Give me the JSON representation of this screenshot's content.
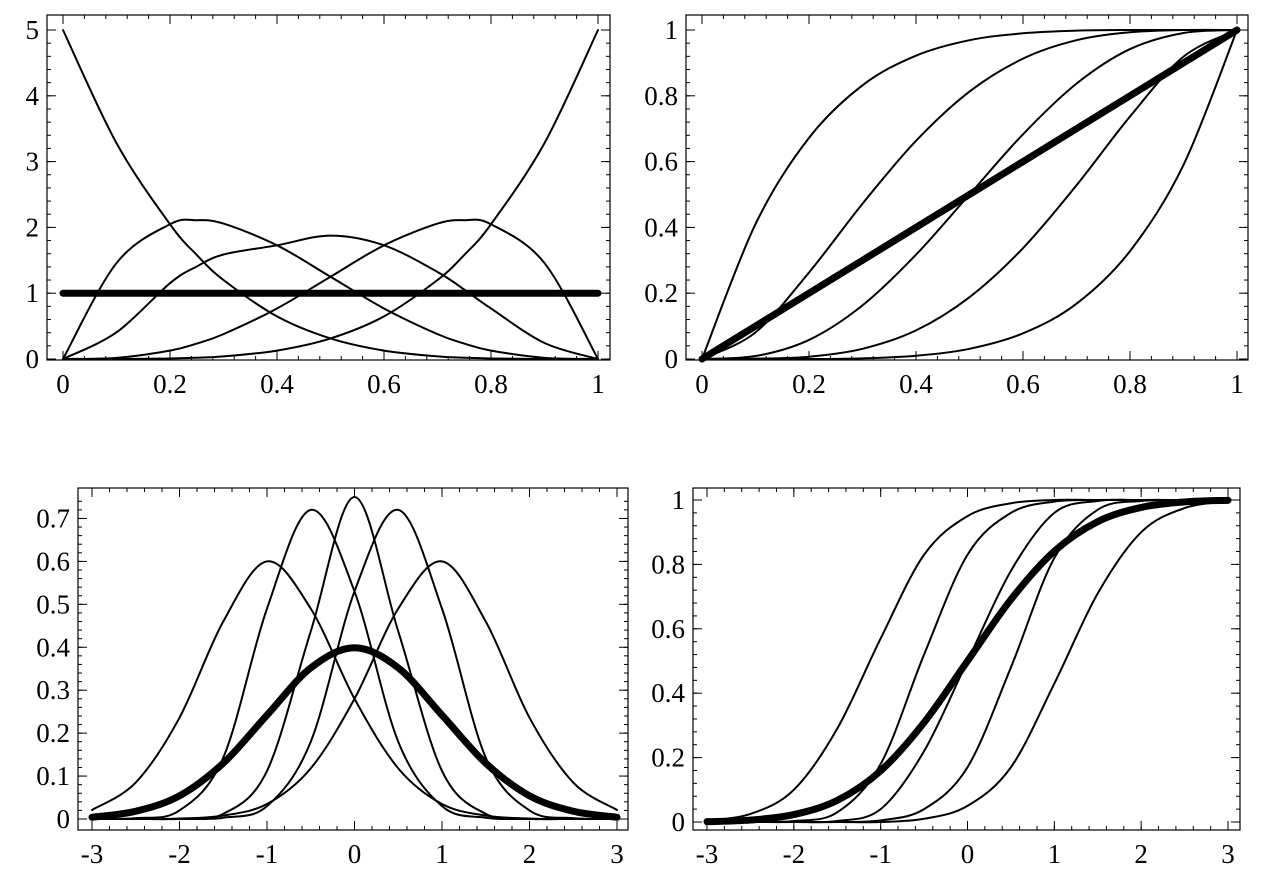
{
  "chart_data": [
    {
      "type": "line",
      "title": "",
      "xlabel": "",
      "ylabel": "",
      "xlim": [
        0,
        1
      ],
      "ylim": [
        0,
        5
      ],
      "x_ticks": [
        "0",
        "0.2",
        "0.4",
        "0.6",
        "0.8",
        "1"
      ],
      "y_ticks": [
        "0",
        "1",
        "2",
        "3",
        "4",
        "5"
      ],
      "x_tick_values": [
        0,
        0.2,
        0.4,
        0.6,
        0.8,
        1
      ],
      "y_tick_values": [
        0,
        1,
        2,
        3,
        4,
        5
      ],
      "grid": false,
      "x": [
        0,
        0.1,
        0.2,
        0.25,
        0.3,
        0.4,
        0.5,
        0.6,
        0.7,
        0.75,
        0.8,
        0.9,
        1
      ],
      "series": [
        {
          "values": [
            5,
            3.281,
            2.048,
            1.582,
            1.2005,
            0.648,
            0.3125,
            0.128,
            0.0405,
            0.0195,
            0.008,
            0.0005,
            0
          ],
          "bold": false
        },
        {
          "values": [
            0,
            1.458,
            2.048,
            2.109,
            2.058,
            1.728,
            1.25,
            0.768,
            0.378,
            0.234,
            0.128,
            0.018,
            0
          ],
          "bold": false
        },
        {
          "values": [
            0,
            0.405,
            1.152,
            1.406,
            1.588,
            1.728,
            1.875,
            1.728,
            1.323,
            1.055,
            0.768,
            0.243,
            0
          ],
          "bold": false
        },
        {
          "values": [
            0,
            0.018,
            0.128,
            0.234,
            0.378,
            0.768,
            1.25,
            1.728,
            2.058,
            2.109,
            2.048,
            1.458,
            0
          ],
          "bold": false
        },
        {
          "values": [
            0,
            0.0005,
            0.008,
            0.0195,
            0.0405,
            0.128,
            0.3125,
            0.648,
            1.2005,
            1.582,
            2.048,
            3.281,
            5
          ],
          "bold": false
        },
        {
          "values": [
            1,
            1,
            1,
            1,
            1,
            1,
            1,
            1,
            1,
            1,
            1,
            1,
            1
          ],
          "bold": true
        }
      ]
    },
    {
      "type": "line",
      "title": "",
      "xlabel": "",
      "ylabel": "",
      "xlim": [
        0,
        1
      ],
      "ylim": [
        0,
        1
      ],
      "x_ticks": [
        "0",
        "0.2",
        "0.4",
        "0.6",
        "0.8",
        "1"
      ],
      "y_ticks": [
        "0",
        "0.2",
        "0.4",
        "0.6",
        "0.8",
        "1"
      ],
      "x_tick_values": [
        0,
        0.2,
        0.4,
        0.6,
        0.8,
        1
      ],
      "y_tick_values": [
        0,
        0.2,
        0.4,
        0.6,
        0.8,
        1
      ],
      "grid": false,
      "x": [
        0,
        0.1,
        0.2,
        0.3,
        0.4,
        0.5,
        0.6,
        0.7,
        0.8,
        0.9,
        1
      ],
      "series": [
        {
          "values": [
            0,
            0.41,
            0.672,
            0.832,
            0.922,
            0.969,
            0.99,
            0.998,
            1,
            1,
            1
          ],
          "bold": false
        },
        {
          "values": [
            0,
            0.081,
            0.263,
            0.472,
            0.663,
            0.813,
            0.913,
            0.969,
            0.993,
            1,
            1
          ],
          "bold": false
        },
        {
          "values": [
            0,
            0.009,
            0.058,
            0.163,
            0.317,
            0.5,
            0.683,
            0.837,
            0.942,
            0.991,
            1
          ],
          "bold": false
        },
        {
          "values": [
            0,
            0.001,
            0.007,
            0.031,
            0.087,
            0.188,
            0.337,
            0.528,
            0.737,
            0.919,
            1
          ],
          "bold": false
        },
        {
          "values": [
            0,
            0,
            0,
            0.002,
            0.01,
            0.031,
            0.078,
            0.168,
            0.328,
            0.59,
            1
          ],
          "bold": false
        },
        {
          "values": [
            0,
            0.1,
            0.2,
            0.3,
            0.4,
            0.5,
            0.6,
            0.7,
            0.8,
            0.9,
            1
          ],
          "bold": true
        }
      ]
    },
    {
      "type": "line",
      "title": "",
      "xlabel": "",
      "ylabel": "",
      "xlim": [
        -3,
        3
      ],
      "ylim": [
        0,
        0.75
      ],
      "x_ticks": [
        "-3",
        "-2",
        "-1",
        "0",
        "1",
        "2",
        "3"
      ],
      "y_ticks": [
        "0",
        "0.1",
        "0.2",
        "0.3",
        "0.4",
        "0.5",
        "0.6",
        "0.7"
      ],
      "x_tick_values": [
        -3,
        -2,
        -1,
        0,
        1,
        2,
        3
      ],
      "y_tick_values": [
        0,
        0.1,
        0.2,
        0.3,
        0.4,
        0.5,
        0.6,
        0.7
      ],
      "grid": false,
      "x": [
        -3,
        -2.5,
        -2,
        -1.5,
        -1,
        -0.5,
        0,
        0.5,
        1,
        1.5,
        2,
        2.5,
        3
      ],
      "series": [
        {
          "values": [
            0.021,
            0.085,
            0.236,
            0.46,
            0.6,
            0.49,
            0.28,
            0.118,
            0.035,
            0.008,
            0.001,
            0,
            0
          ],
          "bold": false
        },
        {
          "values": [
            0,
            0.002,
            0.02,
            0.143,
            0.49,
            0.72,
            0.53,
            0.18,
            0.03,
            0.003,
            0,
            0,
            0
          ],
          "bold": false
        },
        {
          "values": [
            0,
            0,
            0.001,
            0.012,
            0.112,
            0.437,
            0.75,
            0.437,
            0.112,
            0.012,
            0.001,
            0,
            0
          ],
          "bold": false
        },
        {
          "values": [
            0,
            0,
            0,
            0.003,
            0.03,
            0.18,
            0.53,
            0.72,
            0.49,
            0.143,
            0.02,
            0.002,
            0
          ],
          "bold": false
        },
        {
          "values": [
            0,
            0,
            0.001,
            0.008,
            0.035,
            0.118,
            0.28,
            0.49,
            0.6,
            0.46,
            0.236,
            0.085,
            0.021
          ],
          "bold": false
        },
        {
          "values": [
            0.004,
            0.018,
            0.054,
            0.13,
            0.242,
            0.352,
            0.399,
            0.352,
            0.242,
            0.13,
            0.054,
            0.018,
            0.004
          ],
          "bold": true
        }
      ]
    },
    {
      "type": "line",
      "title": "",
      "xlabel": "",
      "ylabel": "",
      "xlim": [
        -3,
        3
      ],
      "ylim": [
        0,
        1
      ],
      "x_ticks": [
        "-3",
        "-2",
        "-1",
        "0",
        "1",
        "2",
        "3"
      ],
      "y_ticks": [
        "0",
        "0.2",
        "0.4",
        "0.6",
        "0.8",
        "1"
      ],
      "x_tick_values": [
        -3,
        -2,
        -1,
        0,
        1,
        2,
        3
      ],
      "y_tick_values": [
        0,
        0.2,
        0.4,
        0.6,
        0.8,
        1
      ],
      "grid": false,
      "x": [
        -3,
        -2.5,
        -2,
        -1.5,
        -1,
        -0.5,
        0,
        0.5,
        1,
        1.5,
        2,
        2.5,
        3
      ],
      "series": [
        {
          "values": [
            0.004,
            0.025,
            0.1,
            0.29,
            0.57,
            0.83,
            0.95,
            0.99,
            1,
            1,
            1,
            1,
            1
          ],
          "bold": false
        },
        {
          "values": [
            0,
            0,
            0.003,
            0.03,
            0.18,
            0.52,
            0.83,
            0.96,
            0.995,
            1,
            1,
            1,
            1
          ],
          "bold": false
        },
        {
          "values": [
            0,
            0,
            0,
            0.003,
            0.04,
            0.22,
            0.5,
            0.78,
            0.96,
            0.997,
            1,
            1,
            1
          ],
          "bold": false
        },
        {
          "values": [
            0,
            0,
            0,
            0,
            0.005,
            0.04,
            0.17,
            0.48,
            0.82,
            0.97,
            0.997,
            1,
            1
          ],
          "bold": false
        },
        {
          "values": [
            0,
            0,
            0,
            0,
            0,
            0.01,
            0.05,
            0.17,
            0.43,
            0.71,
            0.9,
            0.975,
            0.996
          ],
          "bold": false
        },
        {
          "values": [
            0.001,
            0.006,
            0.023,
            0.067,
            0.159,
            0.309,
            0.5,
            0.691,
            0.841,
            0.933,
            0.977,
            0.994,
            0.999
          ],
          "bold": true
        }
      ]
    }
  ]
}
